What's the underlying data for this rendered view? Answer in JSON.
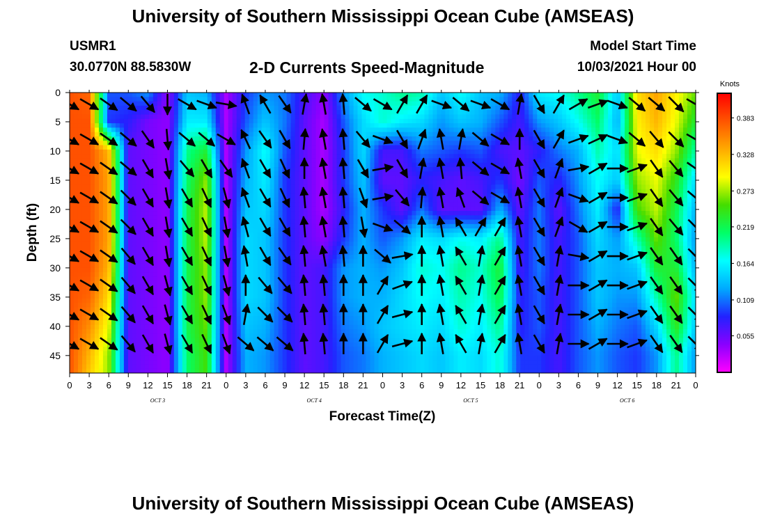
{
  "header": {
    "title": "University of Southern Mississippi Ocean Cube (AMSEAS)",
    "station": "USMR1",
    "coords": "30.0770N  88.5830W",
    "subtitle": "2-D Currents Speed-Magnitude",
    "model_start_label": "Model Start Time",
    "model_start_value": "10/03/2021 Hour 00"
  },
  "footer": {
    "title": "University of Southern Mississippi Ocean Cube (AMSEAS)"
  },
  "chart_data": {
    "type": "heatmap",
    "title": "2-D Currents Speed-Magnitude",
    "xlabel": "Forecast Time(Z)",
    "ylabel": "Depth (ft)",
    "x_ticks": [
      "0",
      "3",
      "6",
      "9",
      "12",
      "15",
      "18",
      "21",
      "0",
      "3",
      "6",
      "9",
      "12",
      "15",
      "18",
      "21",
      "0",
      "3",
      "6",
      "9",
      "12",
      "15",
      "18",
      "21",
      "0",
      "3",
      "6",
      "9",
      "12",
      "15",
      "18",
      "21",
      "0"
    ],
    "day_labels": [
      "OCT 3",
      "OCT 4",
      "OCT 5",
      "OCT 6"
    ],
    "y_ticks": [
      0,
      5,
      10,
      15,
      20,
      25,
      30,
      35,
      40,
      45
    ],
    "ylim": [
      0,
      48
    ],
    "xlim_hours": [
      0,
      96
    ],
    "colorbar": {
      "unit": "Knots",
      "tick_labels": [
        "0.383",
        "0.328",
        "0.273",
        "0.219",
        "0.164",
        "0.109",
        "0.055"
      ],
      "range": [
        0,
        0.42
      ],
      "colors": [
        "#ff00ff",
        "#8a00ff",
        "#2222ff",
        "#00aaff",
        "#00ffff",
        "#00ff66",
        "#44dd00",
        "#ffff00",
        "#ffaa00",
        "#ff5500",
        "#ff0000"
      ]
    },
    "time_hours": [
      0,
      3,
      6,
      9,
      12,
      15,
      18,
      21,
      24,
      27,
      30,
      33,
      36,
      39,
      42,
      45,
      48,
      51,
      54,
      57,
      60,
      63,
      66,
      69,
      72,
      75,
      78,
      81,
      84,
      87,
      90,
      93,
      96
    ],
    "depth_ft": [
      0,
      5,
      10,
      15,
      20,
      25,
      30,
      35,
      40,
      45,
      48
    ],
    "speed_knots": [
      [
        0.38,
        0.38,
        0.38,
        0.38,
        0.38,
        0.38,
        0.38,
        0.38,
        0.38,
        0.38,
        0.38
      ],
      [
        0.37,
        0.38,
        0.38,
        0.38,
        0.38,
        0.38,
        0.38,
        0.37,
        0.35,
        0.33,
        0.32
      ],
      [
        0.1,
        0.09,
        0.33,
        0.34,
        0.34,
        0.34,
        0.33,
        0.31,
        0.29,
        0.27,
        0.27
      ],
      [
        0.1,
        0.08,
        0.06,
        0.06,
        0.06,
        0.06,
        0.06,
        0.06,
        0.06,
        0.06,
        0.06
      ],
      [
        0.12,
        0.05,
        0.05,
        0.05,
        0.05,
        0.05,
        0.05,
        0.05,
        0.05,
        0.05,
        0.05
      ],
      [
        0.04,
        0.04,
        0.04,
        0.04,
        0.04,
        0.04,
        0.04,
        0.04,
        0.04,
        0.04,
        0.04
      ],
      [
        0.14,
        0.16,
        0.2,
        0.21,
        0.22,
        0.22,
        0.22,
        0.22,
        0.22,
        0.21,
        0.21
      ],
      [
        0.13,
        0.16,
        0.23,
        0.27,
        0.28,
        0.28,
        0.27,
        0.27,
        0.26,
        0.25,
        0.25
      ],
      [
        0.03,
        0.03,
        0.03,
        0.03,
        0.03,
        0.03,
        0.03,
        0.03,
        0.03,
        0.03,
        0.03
      ],
      [
        0.09,
        0.1,
        0.12,
        0.13,
        0.14,
        0.15,
        0.15,
        0.15,
        0.14,
        0.13,
        0.13
      ],
      [
        0.12,
        0.14,
        0.17,
        0.16,
        0.15,
        0.14,
        0.14,
        0.14,
        0.13,
        0.12,
        0.12
      ],
      [
        0.11,
        0.11,
        0.1,
        0.09,
        0.09,
        0.09,
        0.09,
        0.09,
        0.09,
        0.09,
        0.09
      ],
      [
        0.07,
        0.06,
        0.06,
        0.06,
        0.06,
        0.06,
        0.06,
        0.06,
        0.06,
        0.06,
        0.06
      ],
      [
        0.04,
        0.03,
        0.03,
        0.03,
        0.03,
        0.04,
        0.07,
        0.07,
        0.07,
        0.07,
        0.07
      ],
      [
        0.12,
        0.1,
        0.09,
        0.09,
        0.08,
        0.09,
        0.12,
        0.12,
        0.11,
        0.1,
        0.1
      ],
      [
        0.17,
        0.15,
        0.15,
        0.14,
        0.13,
        0.13,
        0.13,
        0.13,
        0.12,
        0.11,
        0.11
      ],
      [
        0.18,
        0.18,
        0.07,
        0.06,
        0.09,
        0.1,
        0.12,
        0.13,
        0.14,
        0.13,
        0.13
      ],
      [
        0.2,
        0.16,
        0.07,
        0.06,
        0.06,
        0.12,
        0.14,
        0.15,
        0.15,
        0.14,
        0.14
      ],
      [
        0.19,
        0.15,
        0.11,
        0.08,
        0.11,
        0.16,
        0.18,
        0.17,
        0.16,
        0.15,
        0.15
      ],
      [
        0.14,
        0.12,
        0.1,
        0.07,
        0.06,
        0.15,
        0.17,
        0.16,
        0.15,
        0.14,
        0.14
      ],
      [
        0.17,
        0.14,
        0.09,
        0.06,
        0.06,
        0.17,
        0.2,
        0.19,
        0.18,
        0.16,
        0.16
      ],
      [
        0.14,
        0.13,
        0.1,
        0.07,
        0.06,
        0.16,
        0.18,
        0.17,
        0.16,
        0.15,
        0.15
      ],
      [
        0.13,
        0.1,
        0.07,
        0.09,
        0.13,
        0.2,
        0.23,
        0.22,
        0.2,
        0.18,
        0.18
      ],
      [
        0.08,
        0.07,
        0.06,
        0.05,
        0.06,
        0.07,
        0.07,
        0.08,
        0.08,
        0.09,
        0.09
      ],
      [
        0.16,
        0.12,
        0.08,
        0.1,
        0.11,
        0.11,
        0.11,
        0.1,
        0.1,
        0.09,
        0.09
      ],
      [
        0.17,
        0.14,
        0.11,
        0.08,
        0.06,
        0.07,
        0.07,
        0.07,
        0.07,
        0.07,
        0.07
      ],
      [
        0.2,
        0.17,
        0.13,
        0.12,
        0.11,
        0.1,
        0.1,
        0.1,
        0.1,
        0.1,
        0.1
      ],
      [
        0.23,
        0.21,
        0.19,
        0.17,
        0.16,
        0.15,
        0.14,
        0.14,
        0.13,
        0.12,
        0.12
      ],
      [
        0.14,
        0.13,
        0.15,
        0.14,
        0.08,
        0.12,
        0.13,
        0.12,
        0.11,
        0.1,
        0.1
      ],
      [
        0.31,
        0.3,
        0.29,
        0.27,
        0.25,
        0.19,
        0.14,
        0.12,
        0.1,
        0.09,
        0.09
      ],
      [
        0.34,
        0.33,
        0.31,
        0.29,
        0.28,
        0.26,
        0.23,
        0.19,
        0.15,
        0.12,
        0.12
      ],
      [
        0.3,
        0.29,
        0.27,
        0.24,
        0.22,
        0.21,
        0.23,
        0.26,
        0.24,
        0.2,
        0.2
      ],
      [
        0.26,
        0.23,
        0.19,
        0.15,
        0.13,
        0.12,
        0.13,
        0.15,
        0.14,
        0.12,
        0.12
      ]
    ],
    "arrow_time_hours": [
      0,
      3,
      6,
      9,
      12,
      15,
      18,
      21,
      24,
      27,
      30,
      33,
      36,
      39,
      42,
      45,
      48,
      51,
      54,
      57,
      60,
      63,
      66,
      69,
      72,
      75,
      78,
      81,
      84,
      87,
      90,
      93,
      96
    ],
    "arrow_depth_ft": [
      2,
      8,
      13,
      18,
      23,
      28,
      33,
      38,
      43
    ],
    "arrow_angle_deg": [
      [
        -30,
        -30,
        -30,
        -30,
        -30,
        -30,
        -30,
        -30,
        -30
      ],
      [
        -30,
        -30,
        -30,
        -30,
        -30,
        -30,
        -30,
        -30,
        -30
      ],
      [
        -35,
        -35,
        -35,
        -35,
        -35,
        -35,
        -35,
        -35,
        -35
      ],
      [
        -40,
        -40,
        -40,
        -45,
        -45,
        -50,
        -50,
        -50,
        -50
      ],
      [
        -50,
        -55,
        -60,
        -60,
        -60,
        -60,
        -60,
        -60,
        -60
      ],
      [
        -90,
        -85,
        -80,
        -80,
        -80,
        -80,
        -75,
        -75,
        -75
      ],
      [
        -30,
        -40,
        -50,
        -60,
        -60,
        -60,
        -60,
        -60,
        -60
      ],
      [
        -20,
        -40,
        -60,
        -65,
        -65,
        -65,
        -65,
        -65,
        -65
      ],
      [
        -10,
        -30,
        -55,
        -75,
        -80,
        -80,
        -75,
        -70,
        -70
      ],
      [
        110,
        115,
        110,
        110,
        105,
        100,
        90,
        80,
        -40
      ],
      [
        120,
        -55,
        -60,
        -60,
        -60,
        -60,
        -50,
        -45,
        -40
      ],
      [
        -55,
        -60,
        -65,
        -65,
        -60,
        -55,
        -50,
        -45,
        -40
      ],
      [
        80,
        85,
        90,
        95,
        95,
        95,
        95,
        95,
        95
      ],
      [
        100,
        100,
        100,
        100,
        100,
        100,
        95,
        95,
        95
      ],
      [
        95,
        95,
        95,
        95,
        95,
        95,
        90,
        90,
        90
      ],
      [
        -40,
        -50,
        -60,
        -70,
        -80,
        90,
        90,
        90,
        90
      ],
      [
        -30,
        -20,
        10,
        10,
        -20,
        -40,
        60,
        60,
        60
      ],
      [
        60,
        -60,
        -60,
        -50,
        -40,
        10,
        20,
        15,
        15
      ],
      [
        60,
        70,
        80,
        85,
        90,
        90,
        90,
        90,
        90
      ],
      [
        -20,
        100,
        100,
        100,
        100,
        100,
        100,
        100,
        100
      ],
      [
        -40,
        80,
        95,
        110,
        120,
        120,
        120,
        120,
        120
      ],
      [
        -20,
        -40,
        -40,
        -40,
        60,
        80,
        80,
        80,
        80
      ],
      [
        -30,
        -30,
        -30,
        -30,
        60,
        60,
        60,
        60,
        60
      ],
      [
        80,
        90,
        100,
        100,
        100,
        100,
        100,
        100,
        100
      ],
      [
        -60,
        -60,
        -60,
        -60,
        -60,
        -60,
        -60,
        -60,
        -60
      ],
      [
        60,
        60,
        70,
        70,
        70,
        80,
        80,
        80,
        80
      ],
      [
        30,
        20,
        10,
        -20,
        -30,
        -10,
        0,
        0,
        0
      ],
      [
        20,
        25,
        30,
        30,
        30,
        30,
        30,
        30,
        30
      ],
      [
        -20,
        -20,
        0,
        0,
        0,
        0,
        0,
        0,
        0
      ],
      [
        -40,
        -40,
        20,
        20,
        20,
        20,
        20,
        20,
        20
      ],
      [
        -40,
        -50,
        -55,
        -55,
        -55,
        -55,
        -55,
        -55,
        -55
      ],
      [
        -45,
        -45,
        -50,
        -50,
        -50,
        -55,
        -55,
        -55,
        -55
      ],
      [
        -30,
        -30,
        -35,
        -40,
        -45,
        -45,
        -45,
        -45,
        -45
      ]
    ]
  }
}
